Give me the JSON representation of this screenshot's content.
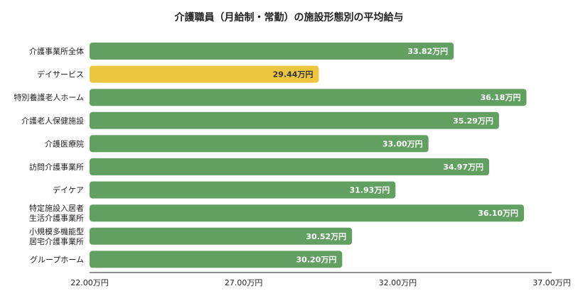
{
  "chart_data": {
    "type": "bar",
    "orientation": "horizontal",
    "title": "介護職員（月給制・常勤）の施設形態別の平均給与",
    "categories": [
      [
        "介護事業所全体"
      ],
      [
        "デイサービス"
      ],
      [
        "特別養護老人ホーム"
      ],
      [
        "介護老人保健施設"
      ],
      [
        "介護医療院"
      ],
      [
        "訪問介護事業所"
      ],
      [
        "デイケア"
      ],
      [
        "特定施設入居者",
        "生活介護事業所"
      ],
      [
        "小規模多機能型",
        "居宅介護事業所"
      ],
      [
        "グループホーム"
      ]
    ],
    "values": [
      33.82,
      29.44,
      36.18,
      35.29,
      33.0,
      34.97,
      31.93,
      36.1,
      30.52,
      30.2
    ],
    "value_labels": [
      "33.82万円",
      "29.44万円",
      "36.18万円",
      "35.29万円",
      "33.00万円",
      "34.97万円",
      "31.93万円",
      "36.10万円",
      "30.52万円",
      "30.20万円"
    ],
    "highlight_index": 1,
    "unit": "万円",
    "xlim": [
      22.0,
      37.0
    ],
    "x_ticks": [
      22.0,
      27.0,
      32.0,
      37.0
    ],
    "x_tick_labels": [
      "22.00万円",
      "27.00万円",
      "32.00万円",
      "37.00万円"
    ],
    "grid": false,
    "colors": {
      "bar": "#62a062",
      "highlight": "#edc640",
      "label_on_bar": "#ffffff",
      "label_on_highlight": "#333333",
      "axis": "#222222"
    }
  }
}
